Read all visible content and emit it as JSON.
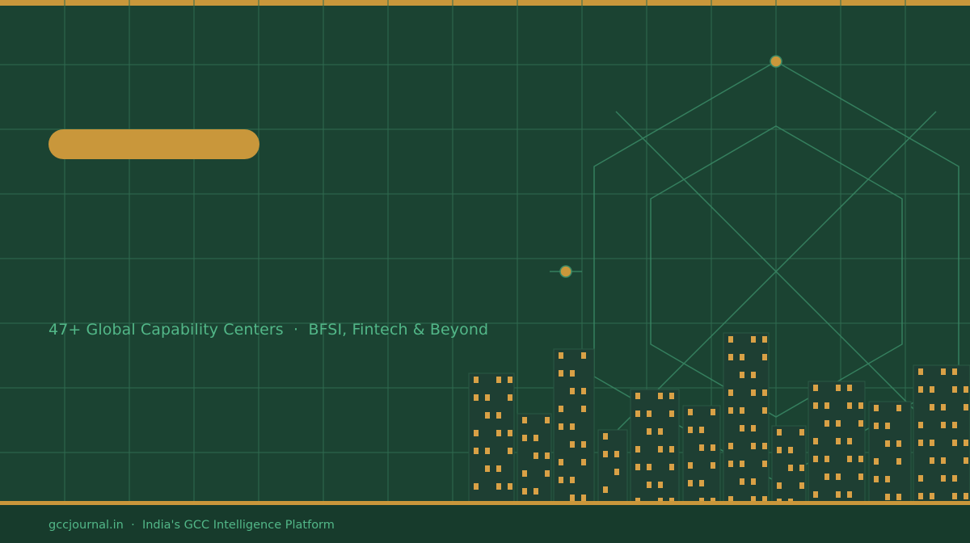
{
  "banner": {
    "tagline": "47+ Global Capability Centers  ·  BFSI, Fintech & Beyond"
  },
  "footer": {
    "site": "gccjournal.in",
    "separator": "·",
    "description": "India's GCC Intelligence Platform"
  },
  "colors": {
    "background": "#1b4332",
    "accent_gold": "#c9973b",
    "text_green": "#52b788",
    "building": "#1e3f33",
    "window": "#d9a146",
    "grid_line": "#2f6b50"
  },
  "icons": {
    "hexagon": "hexagon-outline-icon",
    "skyline": "city-skyline-icon"
  }
}
